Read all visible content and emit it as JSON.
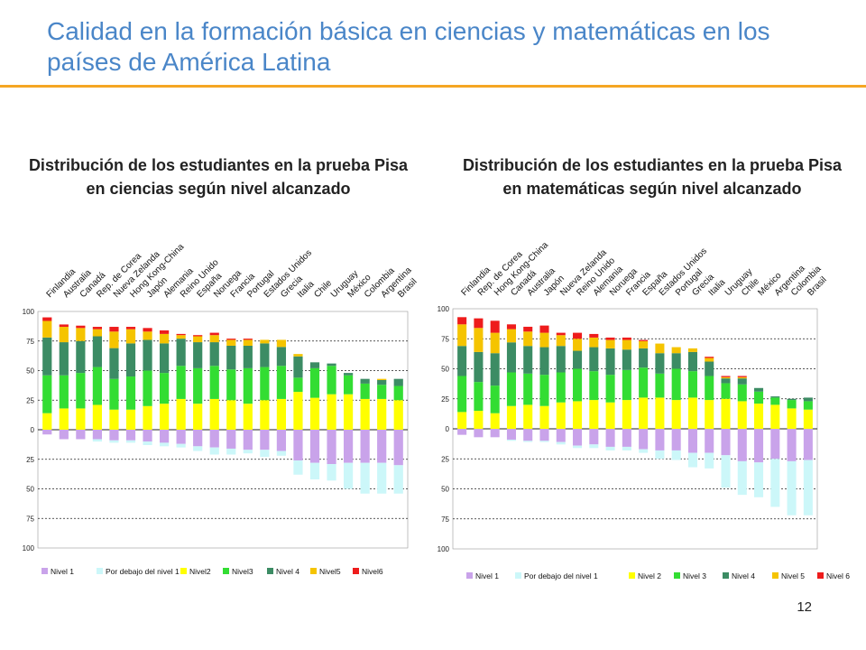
{
  "slide": {
    "title": "Calidad en la formación básica en ciencias y matemáticas en los países de América Latina",
    "page_number": "12"
  },
  "colors": {
    "title": "#4a86c8",
    "rule": "#f5a623",
    "Nivel 1": "#c9a3ea",
    "Por debajo del nivel 1": "#ccf7f9",
    "Nivel 2": "#ffff00",
    "Nivel 3": "#33dd33",
    "Nivel 4": "#3c8c64",
    "Nivel 5": "#f5c400",
    "Nivel 6": "#ee1c1c"
  },
  "chart_data": [
    {
      "type": "bar",
      "stacked": true,
      "diverging": true,
      "title": "Distribución de los estudiantes en la prueba Pisa en ciencias según nivel alcanzado",
      "categories": [
        "Finlandia",
        "Australia",
        "Canadá",
        "Rep. de Corea",
        "Nueva Zelanda",
        "Hong Kong-China",
        "Japón",
        "Alemania",
        "Reino Unido",
        "España",
        "Noruega",
        "Francia",
        "Portugal",
        "Estados Unidos",
        "Grecia",
        "Italia",
        "Chile",
        "Uruguay",
        "México",
        "Colombia",
        "Argentina",
        "Brasil"
      ],
      "ylim": [
        -100,
        100
      ],
      "yticks": [
        100,
        75,
        50,
        25,
        0,
        25,
        50,
        75,
        100
      ],
      "tick_values": [
        100,
        75,
        50,
        25,
        0,
        -25,
        -50,
        -75,
        -100
      ],
      "grid": true,
      "legend_position": "bottom",
      "series": [
        {
          "name": "Nivel 1",
          "direction": "below",
          "values": [
            4,
            8,
            8,
            8,
            9,
            9,
            10,
            11,
            12,
            14,
            15,
            16,
            17,
            17,
            18,
            26,
            28,
            29,
            28,
            28,
            28,
            30
          ]
        },
        {
          "name": "Por debajo del nivel 1",
          "direction": "below",
          "values": [
            0,
            0,
            0,
            2,
            2,
            2,
            3,
            3,
            3,
            4,
            6,
            5,
            3,
            6,
            4,
            12,
            14,
            14,
            22,
            26,
            26,
            24
          ]
        },
        {
          "name": "Nivel2",
          "direction": "above",
          "values": [
            14,
            18,
            18,
            21,
            17,
            17,
            20,
            22,
            26,
            22,
            26,
            25,
            22,
            25,
            26,
            32,
            27,
            30,
            30,
            26,
            26,
            25
          ]
        },
        {
          "name": "Nivel3",
          "direction": "above",
          "values": [
            32,
            28,
            30,
            32,
            26,
            28,
            30,
            26,
            28,
            30,
            28,
            26,
            30,
            28,
            28,
            12,
            25,
            24,
            16,
            13,
            12,
            12
          ]
        },
        {
          "name": "Nivel 4",
          "direction": "above",
          "values": [
            32,
            28,
            27,
            26,
            26,
            28,
            26,
            25,
            23,
            22,
            20,
            20,
            19,
            20,
            16,
            18,
            5,
            2,
            2,
            4,
            4,
            6
          ]
        },
        {
          "name": "Nivel5",
          "direction": "above",
          "values": [
            14,
            13,
            11,
            6,
            14,
            12,
            7,
            8,
            3,
            5,
            6,
            5,
            5,
            3,
            6,
            2,
            0,
            0,
            0,
            0,
            1,
            0
          ]
        },
        {
          "name": "Nivel6",
          "direction": "above",
          "values": [
            3,
            2,
            2,
            2,
            4,
            2,
            3,
            3,
            1,
            1,
            2,
            1,
            1,
            0,
            0,
            0,
            0,
            0,
            0,
            0,
            0,
            0
          ]
        }
      ]
    },
    {
      "type": "bar",
      "stacked": true,
      "diverging": true,
      "title": "Distribución de los estudiantes en la prueba Pisa en matemáticas según nivel alcanzado",
      "categories": [
        "Finlandia",
        "Rep. de Corea",
        "Hong Kong-China",
        "Canadá",
        "Australia",
        "Japón",
        "Nueva Zelanda",
        "Reino Unido",
        "Alemania",
        "Noruega",
        "Francia",
        "España",
        "Estados Unidos",
        "Portugal",
        "Grecia",
        "Italia",
        "Uruguay",
        "Chile",
        "México",
        "Argentina",
        "Colombia",
        "Brasil"
      ],
      "ylim": [
        -100,
        100
      ],
      "yticks": [
        100,
        75,
        50,
        25,
        0,
        25,
        50,
        75,
        100
      ],
      "tick_values": [
        100,
        75,
        50,
        25,
        0,
        -25,
        -50,
        -75,
        -100
      ],
      "grid": true,
      "legend_position": "bottom",
      "series": [
        {
          "name": "Nivel 1",
          "direction": "below",
          "values": [
            5,
            7,
            7,
            9,
            10,
            10,
            11,
            14,
            13,
            15,
            15,
            17,
            18,
            18,
            20,
            20,
            22,
            27,
            28,
            25,
            27,
            26
          ]
        },
        {
          "name": "Por debajo del nivel 1",
          "direction": "below",
          "values": [
            0,
            0,
            0,
            1,
            1,
            1,
            2,
            2,
            3,
            3,
            3,
            3,
            7,
            8,
            12,
            13,
            27,
            28,
            29,
            40,
            45,
            46
          ]
        },
        {
          "name": "Nivel 2",
          "direction": "above",
          "values": [
            14,
            15,
            13,
            19,
            20,
            19,
            22,
            23,
            24,
            22,
            24,
            26,
            26,
            24,
            26,
            24,
            25,
            23,
            21,
            20,
            17,
            16
          ]
        },
        {
          "name": "Nivel 3",
          "direction": "above",
          "values": [
            30,
            24,
            23,
            28,
            26,
            26,
            25,
            27,
            24,
            23,
            25,
            25,
            20,
            26,
            22,
            20,
            13,
            14,
            10,
            6,
            7,
            7
          ]
        },
        {
          "name": "Nivel 4",
          "direction": "above",
          "values": [
            25,
            25,
            27,
            25,
            23,
            23,
            22,
            15,
            20,
            22,
            17,
            16,
            17,
            13,
            16,
            12,
            4,
            5,
            3,
            1,
            1,
            3
          ]
        },
        {
          "name": "Nivel 5",
          "direction": "above",
          "values": [
            18,
            20,
            17,
            11,
            12,
            12,
            9,
            10,
            8,
            7,
            8,
            6,
            8,
            5,
            3,
            3,
            1,
            1,
            0,
            0,
            0,
            0
          ]
        },
        {
          "name": "Nivel 6",
          "direction": "above",
          "values": [
            6,
            8,
            10,
            4,
            4,
            6,
            2,
            5,
            3,
            2,
            2,
            1,
            0,
            0,
            0,
            1,
            1,
            1,
            0,
            0,
            0,
            0
          ]
        }
      ]
    }
  ]
}
